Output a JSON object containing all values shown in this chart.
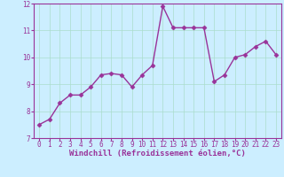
{
  "x": [
    0,
    1,
    2,
    3,
    4,
    5,
    6,
    7,
    8,
    9,
    10,
    11,
    12,
    13,
    14,
    15,
    16,
    17,
    18,
    19,
    20,
    21,
    22,
    23
  ],
  "y": [
    7.5,
    7.7,
    8.3,
    8.6,
    8.6,
    8.9,
    9.35,
    9.4,
    9.35,
    8.9,
    9.35,
    9.7,
    11.9,
    11.1,
    11.1,
    11.1,
    11.1,
    9.1,
    9.35,
    10.0,
    10.1,
    10.4,
    10.6,
    10.1
  ],
  "line_color": "#993399",
  "marker": "D",
  "markersize": 2.5,
  "linewidth": 1.0,
  "bg_color": "#cceeff",
  "grid_color": "#aaddcc",
  "xlabel": "Windchill (Refroidissement éolien,°C)",
  "xlabel_color": "#993399",
  "tick_color": "#993399",
  "spine_color": "#993399",
  "xlim": [
    -0.5,
    23.5
  ],
  "ylim": [
    7,
    12
  ],
  "yticks": [
    7,
    8,
    9,
    10,
    11,
    12
  ],
  "xticks": [
    0,
    1,
    2,
    3,
    4,
    5,
    6,
    7,
    8,
    9,
    10,
    11,
    12,
    13,
    14,
    15,
    16,
    17,
    18,
    19,
    20,
    21,
    22,
    23
  ],
  "xlabel_fontsize": 6.5,
  "tick_fontsize": 5.5
}
